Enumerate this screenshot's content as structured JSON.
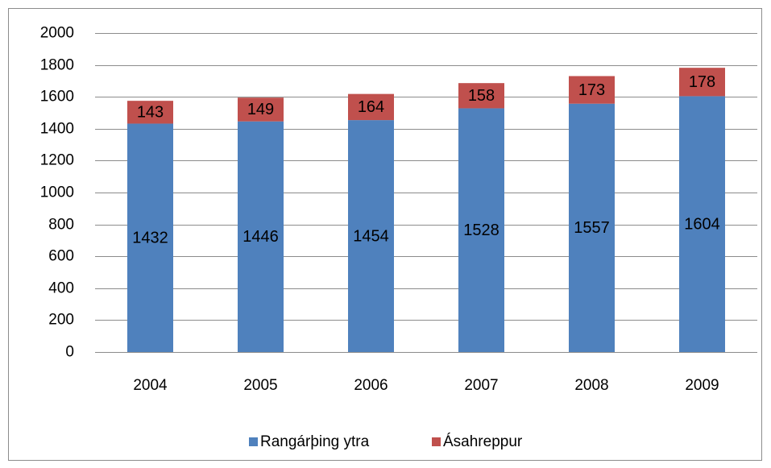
{
  "chart_data": {
    "type": "bar",
    "stacked": true,
    "categories": [
      "2004",
      "2005",
      "2006",
      "2007",
      "2008",
      "2009"
    ],
    "series": [
      {
        "name": "Rangárþing ytra",
        "color": "#4f81bd",
        "values": [
          1432,
          1446,
          1454,
          1528,
          1557,
          1604
        ]
      },
      {
        "name": "Ásahreppur",
        "color": "#c0504d",
        "values": [
          143,
          149,
          164,
          158,
          173,
          178
        ]
      }
    ],
    "ylim": [
      0,
      2000
    ],
    "yticks": [
      0,
      200,
      400,
      600,
      800,
      1000,
      1200,
      1400,
      1600,
      1800,
      2000
    ],
    "grid": true,
    "legend": "bottom"
  }
}
